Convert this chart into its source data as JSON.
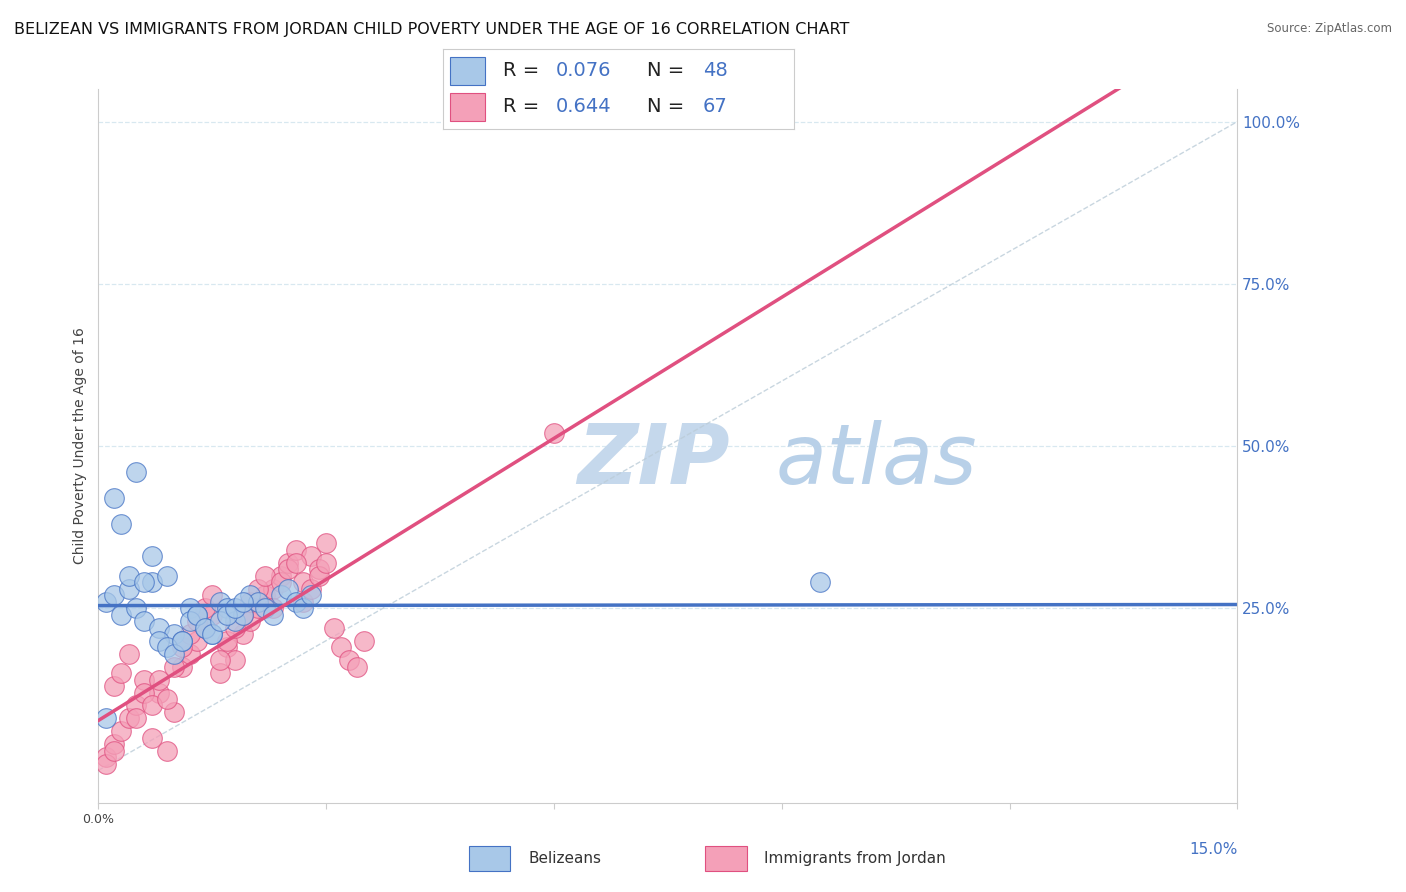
{
  "title": "BELIZEAN VS IMMIGRANTS FROM JORDAN CHILD POVERTY UNDER THE AGE OF 16 CORRELATION CHART",
  "source": "Source: ZipAtlas.com",
  "ylabel": "Child Poverty Under the Age of 16",
  "xlim": [
    0.0,
    0.15
  ],
  "ylim": [
    -0.05,
    1.05
  ],
  "yticks_right": [
    0.25,
    0.5,
    0.75,
    1.0
  ],
  "yticklabels_right": [
    "25.0%",
    "50.0%",
    "75.0%",
    "100.0%"
  ],
  "belizean_color": "#a8c8e8",
  "jordan_color": "#f4a0b8",
  "belizean_line_color": "#4472c4",
  "jordan_line_color": "#e05080",
  "watermark_color": "#ccddef",
  "background_color": "#ffffff",
  "grid_color": "#d8e8f0",
  "title_fontsize": 11.5,
  "axis_label_fontsize": 10,
  "belizean_scatter_x": [
    0.001,
    0.002,
    0.003,
    0.004,
    0.005,
    0.006,
    0.007,
    0.008,
    0.009,
    0.01,
    0.011,
    0.012,
    0.013,
    0.014,
    0.015,
    0.016,
    0.017,
    0.018,
    0.019,
    0.02,
    0.021,
    0.022,
    0.023,
    0.024,
    0.025,
    0.026,
    0.027,
    0.028,
    0.002,
    0.003,
    0.004,
    0.005,
    0.006,
    0.007,
    0.008,
    0.009,
    0.01,
    0.011,
    0.012,
    0.013,
    0.014,
    0.015,
    0.016,
    0.017,
    0.018,
    0.019,
    0.095,
    0.001
  ],
  "belizean_scatter_y": [
    0.26,
    0.27,
    0.24,
    0.28,
    0.25,
    0.23,
    0.29,
    0.22,
    0.3,
    0.21,
    0.2,
    0.25,
    0.24,
    0.22,
    0.21,
    0.26,
    0.25,
    0.23,
    0.24,
    0.27,
    0.26,
    0.25,
    0.24,
    0.27,
    0.28,
    0.26,
    0.25,
    0.27,
    0.42,
    0.38,
    0.3,
    0.46,
    0.29,
    0.33,
    0.2,
    0.19,
    0.18,
    0.2,
    0.23,
    0.24,
    0.22,
    0.21,
    0.23,
    0.24,
    0.25,
    0.26,
    0.29,
    0.08
  ],
  "jordan_scatter_x": [
    0.001,
    0.002,
    0.003,
    0.004,
    0.005,
    0.006,
    0.007,
    0.008,
    0.009,
    0.01,
    0.011,
    0.012,
    0.013,
    0.014,
    0.015,
    0.016,
    0.017,
    0.018,
    0.019,
    0.02,
    0.021,
    0.022,
    0.023,
    0.024,
    0.025,
    0.026,
    0.027,
    0.028,
    0.029,
    0.03,
    0.031,
    0.032,
    0.033,
    0.034,
    0.035,
    0.002,
    0.003,
    0.004,
    0.005,
    0.006,
    0.007,
    0.008,
    0.009,
    0.01,
    0.011,
    0.012,
    0.013,
    0.014,
    0.015,
    0.016,
    0.017,
    0.018,
    0.019,
    0.02,
    0.021,
    0.022,
    0.023,
    0.024,
    0.025,
    0.026,
    0.027,
    0.028,
    0.029,
    0.03,
    0.06,
    0.001,
    0.002
  ],
  "jordan_scatter_y": [
    0.02,
    0.04,
    0.06,
    0.08,
    0.1,
    0.14,
    0.05,
    0.12,
    0.03,
    0.09,
    0.16,
    0.18,
    0.2,
    0.22,
    0.24,
    0.15,
    0.19,
    0.17,
    0.21,
    0.23,
    0.25,
    0.27,
    0.28,
    0.3,
    0.32,
    0.34,
    0.29,
    0.33,
    0.31,
    0.35,
    0.22,
    0.19,
    0.17,
    0.16,
    0.2,
    0.13,
    0.15,
    0.18,
    0.08,
    0.12,
    0.1,
    0.14,
    0.11,
    0.16,
    0.19,
    0.21,
    0.23,
    0.25,
    0.27,
    0.17,
    0.2,
    0.22,
    0.24,
    0.26,
    0.28,
    0.3,
    0.25,
    0.29,
    0.31,
    0.32,
    0.26,
    0.28,
    0.3,
    0.32,
    0.52,
    0.01,
    0.03
  ],
  "belizean_R": 0.076,
  "belizean_N": 48,
  "jordan_R": 0.644,
  "jordan_N": 67
}
